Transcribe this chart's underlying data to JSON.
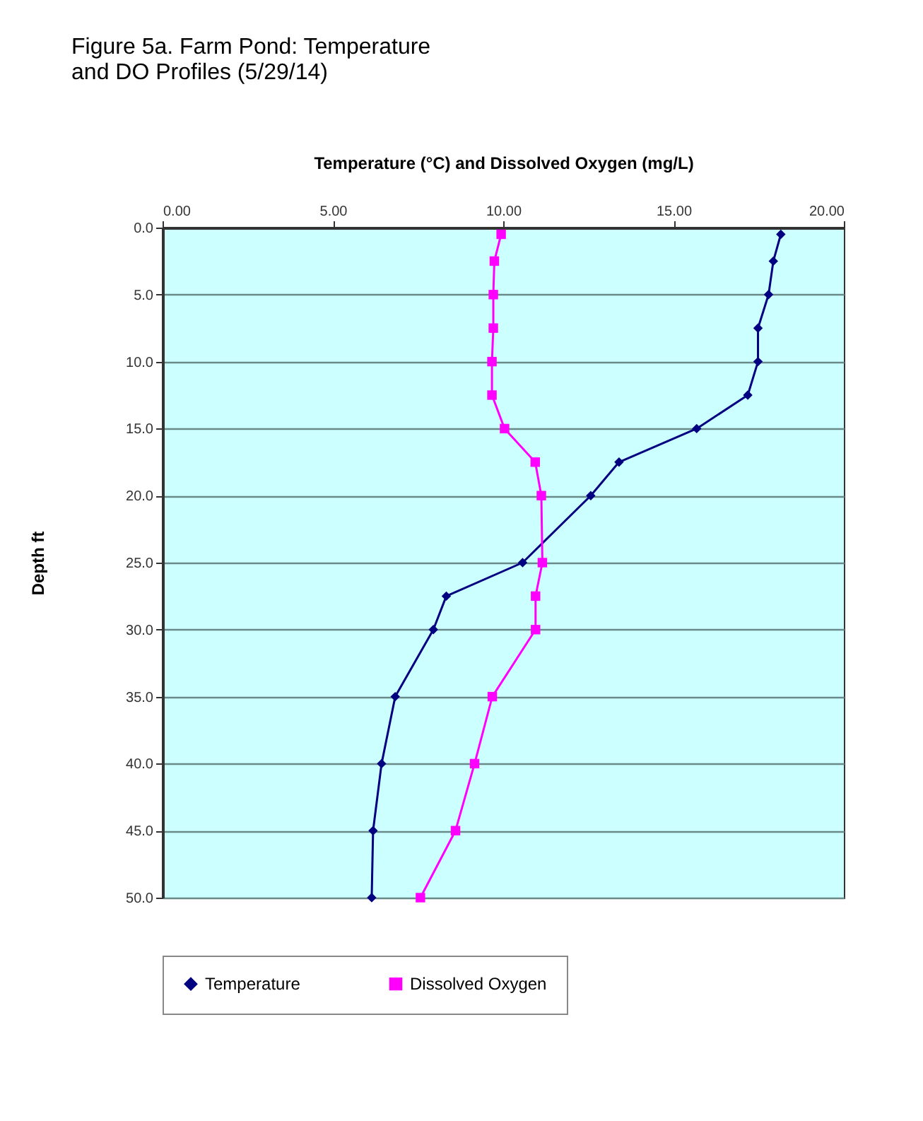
{
  "chart_data": {
    "type": "line",
    "title": [
      "Figure 5a. Farm Pond: Temperature",
      "and DO Profiles  (5/29/14)"
    ],
    "xlabel": "Temperature (°C) and Dissolved Oxygen (mg/L)",
    "ylabel": "Depth ft",
    "series": [
      {
        "name": "Temperature",
        "color": "#000080",
        "marker": "diamond",
        "x": [
          18.15,
          17.93,
          17.79,
          17.48,
          17.48,
          17.18,
          15.68,
          13.4,
          12.57,
          10.57,
          8.33,
          7.95,
          6.83,
          6.43,
          6.18,
          6.14
        ],
        "values": [
          0.5,
          2.5,
          5,
          7.5,
          10,
          12.5,
          15,
          17.5,
          20,
          25,
          27.5,
          30,
          35,
          40,
          45,
          50
        ]
      },
      {
        "name": "Dissolved Oxygen",
        "color": "#ff00ff",
        "marker": "square",
        "x": [
          9.94,
          9.74,
          9.71,
          9.71,
          9.67,
          9.67,
          10.04,
          10.94,
          11.12,
          11.15,
          10.95,
          10.95,
          9.68,
          9.16,
          8.6,
          7.57
        ],
        "values": [
          0.5,
          2.5,
          5,
          7.5,
          10,
          12.5,
          15,
          17.5,
          20,
          25,
          27.5,
          30,
          35,
          40,
          45,
          50
        ]
      }
    ],
    "xlim": [
      0,
      20
    ],
    "xticks": [
      {
        "value": 0,
        "label": "0.00"
      },
      {
        "value": 5,
        "label": "5.00"
      },
      {
        "value": 10,
        "label": "10.00"
      },
      {
        "value": 15,
        "label": "15.00"
      },
      {
        "value": 20,
        "label": "20.00"
      }
    ],
    "ylim": [
      50,
      0
    ],
    "yticks": [
      {
        "value": 0,
        "label": "0.0"
      },
      {
        "value": 5,
        "label": "5.0"
      },
      {
        "value": 10,
        "label": "10.0"
      },
      {
        "value": 15,
        "label": "15.0"
      },
      {
        "value": 20,
        "label": "20.0"
      },
      {
        "value": 25,
        "label": "25.0"
      },
      {
        "value": 30,
        "label": "30.0"
      },
      {
        "value": 35,
        "label": "35.0"
      },
      {
        "value": 40,
        "label": "40.0"
      },
      {
        "value": 45,
        "label": "45.0"
      },
      {
        "value": 50,
        "label": "50.0"
      }
    ],
    "grid": "y",
    "legend": "bottom",
    "line_style": "solid"
  }
}
